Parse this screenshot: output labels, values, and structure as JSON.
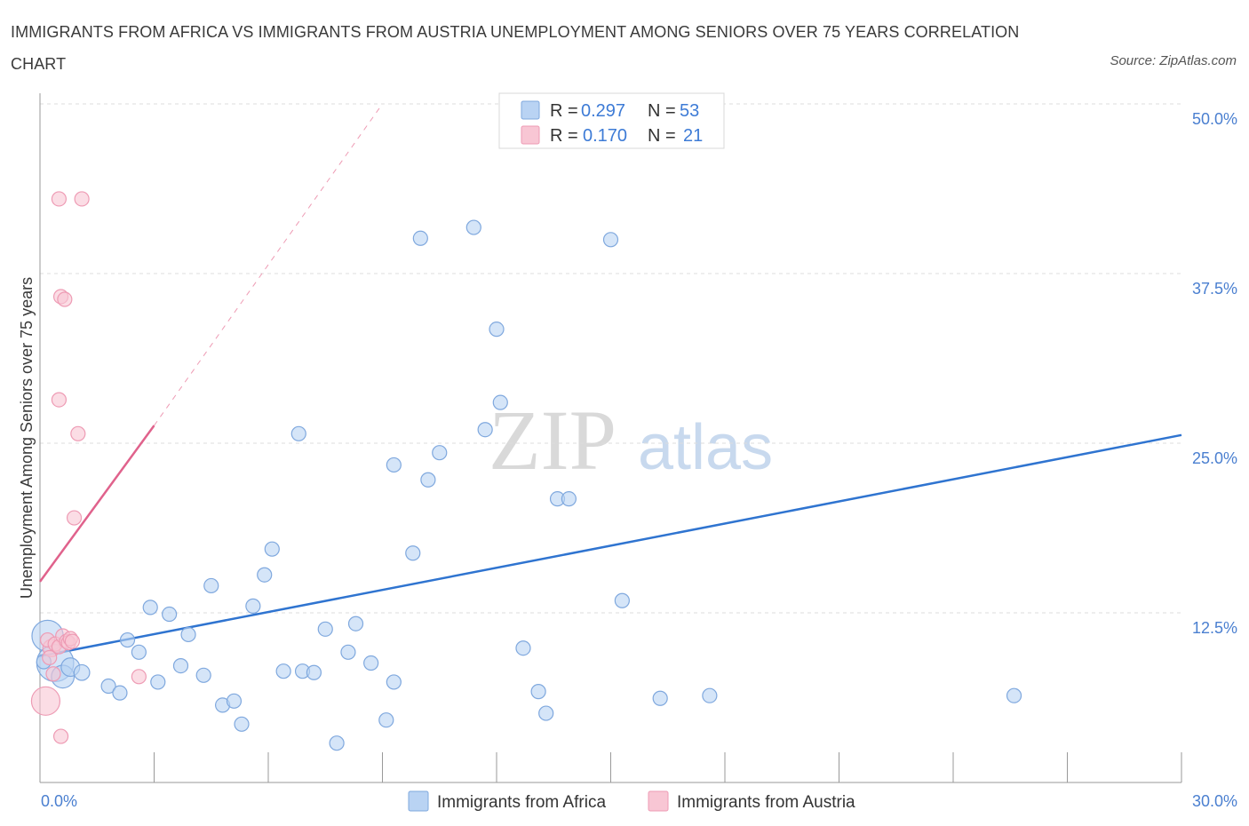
{
  "title": "IMMIGRANTS FROM AFRICA VS IMMIGRANTS FROM AUSTRIA UNEMPLOYMENT AMONG SENIORS OVER 75 YEARS CORRELATION CHART",
  "source": "Source: ZipAtlas.com",
  "watermark": {
    "zip": "ZIP",
    "atlas": "atlas"
  },
  "legend": {
    "rows": [
      {
        "r_label": "R =",
        "r_value": "0.297",
        "n_label": "N =",
        "n_value": "53"
      },
      {
        "r_label": "R =",
        "r_value": "0.170",
        "n_label": "N =",
        "n_value": "21"
      }
    ]
  },
  "colors": {
    "africa_fill": "#b9d3f3",
    "africa_stroke": "#7fa8de",
    "africa_line": "#2f74d0",
    "austria_fill": "#f8c6d4",
    "austria_stroke": "#ee9bb4",
    "austria_line": "#e0628c",
    "grid": "#dddddd",
    "axis": "#999999",
    "tick_label": "#4a7fd0"
  },
  "chart_data": {
    "type": "scatter",
    "title": "IMMIGRANTS FROM AFRICA VS IMMIGRANTS FROM AUSTRIA UNEMPLOYMENT AMONG SENIORS OVER 75 YEARS CORRELATION CHART",
    "xlabel": "",
    "ylabel": "Unemployment Among Seniors over 75 years",
    "xlim": [
      0,
      30
    ],
    "ylim": [
      0,
      50
    ],
    "x_tick_labels": [
      "0.0%",
      "30.0%"
    ],
    "y_ticks": [
      12.5,
      25.0,
      37.5,
      50.0
    ],
    "y_tick_labels": [
      "12.5%",
      "25.0%",
      "37.5%",
      "50.0%"
    ],
    "grid": true,
    "series": [
      {
        "name": "Immigrants from Africa",
        "r": 0.297,
        "n": 53,
        "points": [
          [
            0.2,
            10.8,
            2.2
          ],
          [
            0.4,
            8.8,
            2.6
          ],
          [
            0.6,
            7.8,
            1.6
          ],
          [
            0.8,
            8.5,
            1.3
          ],
          [
            1.1,
            8.1,
            1.1
          ],
          [
            1.8,
            7.1,
            1.0
          ],
          [
            2.1,
            6.6,
            1.0
          ],
          [
            2.3,
            10.5,
            1.0
          ],
          [
            2.6,
            9.6,
            1.0
          ],
          [
            2.9,
            12.9,
            1.0
          ],
          [
            3.1,
            7.4,
            1.0
          ],
          [
            3.4,
            12.4,
            1.0
          ],
          [
            3.7,
            8.6,
            1.0
          ],
          [
            3.9,
            10.9,
            1.0
          ],
          [
            4.3,
            7.9,
            1.0
          ],
          [
            4.5,
            14.5,
            1.0
          ],
          [
            4.8,
            5.7,
            1.0
          ],
          [
            5.1,
            6.0,
            1.0
          ],
          [
            5.3,
            4.3,
            1.0
          ],
          [
            5.6,
            13.0,
            1.0
          ],
          [
            5.9,
            15.3,
            1.0
          ],
          [
            6.1,
            17.2,
            1.0
          ],
          [
            6.4,
            8.2,
            1.0
          ],
          [
            6.8,
            25.7,
            1.0
          ],
          [
            6.9,
            8.2,
            1.0
          ],
          [
            7.2,
            8.1,
            1.0
          ],
          [
            7.5,
            11.3,
            1.0
          ],
          [
            7.8,
            2.9,
            1.0
          ],
          [
            8.1,
            9.6,
            1.0
          ],
          [
            8.3,
            11.7,
            1.0
          ],
          [
            8.7,
            8.8,
            1.0
          ],
          [
            9.1,
            4.6,
            1.0
          ],
          [
            9.3,
            7.4,
            1.0
          ],
          [
            9.3,
            23.4,
            1.0
          ],
          [
            9.8,
            16.9,
            1.0
          ],
          [
            10.0,
            40.1,
            1.0
          ],
          [
            10.2,
            22.3,
            1.0
          ],
          [
            10.5,
            24.3,
            1.0
          ],
          [
            11.4,
            40.9,
            1.0
          ],
          [
            11.7,
            26.0,
            1.0
          ],
          [
            12.0,
            33.4,
            1.0
          ],
          [
            12.1,
            28.0,
            1.0
          ],
          [
            12.7,
            9.9,
            1.0
          ],
          [
            13.1,
            6.7,
            1.0
          ],
          [
            13.3,
            5.1,
            1.0
          ],
          [
            13.6,
            20.9,
            1.0
          ],
          [
            13.9,
            20.9,
            1.0
          ],
          [
            15.0,
            40.0,
            1.0
          ],
          [
            15.3,
            13.4,
            1.0
          ],
          [
            16.3,
            6.2,
            1.0
          ],
          [
            17.6,
            6.4,
            1.0
          ],
          [
            25.6,
            6.4,
            1.0
          ],
          [
            0.1,
            8.9,
            1.0
          ]
        ],
        "trend": {
          "x": [
            0.0,
            30.0
          ],
          "y": [
            9.3,
            25.6
          ]
        }
      },
      {
        "name": "Immigrants from Austria",
        "r": 0.17,
        "n": 21,
        "points": [
          [
            0.15,
            6.0,
            2.0
          ],
          [
            0.3,
            9.9,
            1.2
          ],
          [
            0.35,
            8.0,
            1.0
          ],
          [
            0.2,
            10.5,
            1.0
          ],
          [
            0.4,
            10.2,
            1.0
          ],
          [
            0.5,
            28.2,
            1.0
          ],
          [
            0.5,
            10.0,
            1.0
          ],
          [
            0.55,
            3.4,
            1.0
          ],
          [
            0.5,
            43.0,
            1.0
          ],
          [
            0.55,
            35.8,
            1.0
          ],
          [
            0.6,
            10.8,
            1.0
          ],
          [
            0.65,
            35.6,
            1.0
          ],
          [
            0.7,
            10.4,
            1.0
          ],
          [
            0.75,
            10.3,
            1.0
          ],
          [
            0.8,
            10.6,
            1.0
          ],
          [
            0.85,
            10.4,
            1.0
          ],
          [
            0.9,
            19.5,
            1.0
          ],
          [
            1.0,
            25.7,
            1.0
          ],
          [
            1.1,
            43.0,
            1.0
          ],
          [
            2.6,
            7.8,
            1.0
          ],
          [
            0.25,
            9.2,
            1.0
          ]
        ],
        "trend": {
          "x": [
            0.0,
            3.0
          ],
          "y": [
            14.8,
            26.3
          ]
        },
        "trend_extension": {
          "x": [
            3.0,
            9.0
          ],
          "y": [
            26.3,
            50.0
          ]
        }
      }
    ]
  },
  "bottom_legend": {
    "items": [
      {
        "label": "Immigrants from Africa"
      },
      {
        "label": "Immigrants from Austria"
      }
    ]
  }
}
